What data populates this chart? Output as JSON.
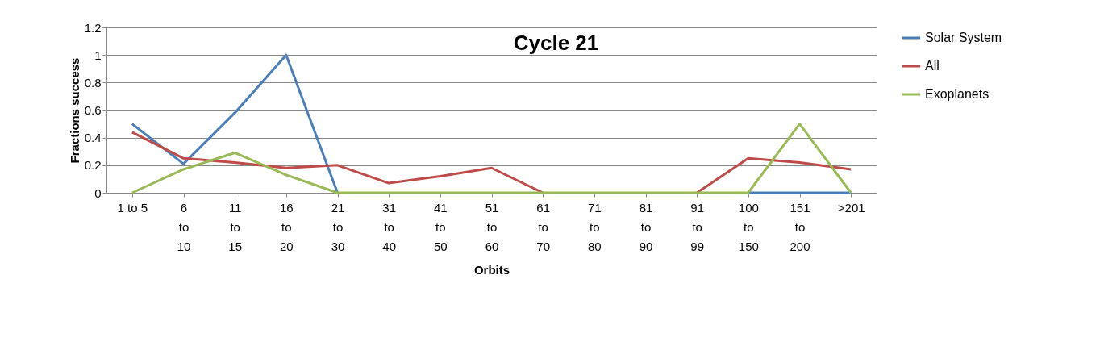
{
  "chart_data": {
    "type": "line",
    "title": "Cycle 21",
    "xlabel": "Orbits",
    "ylabel": "Fractions success",
    "categories": [
      "1 to 5",
      "6 to 10",
      "11 to 15",
      "16 to 20",
      "21 to 30",
      "31 to 40",
      "41 to 50",
      "51 to 60",
      "61 to 70",
      "71 to 80",
      "81 to 90",
      "91 to 99",
      "100 to 150",
      "151 to 200",
      ">201"
    ],
    "series": [
      {
        "name": "Solar System",
        "color": "#4a7ebb",
        "values": [
          0.5,
          0.21,
          0.58,
          1.0,
          0,
          null,
          null,
          null,
          null,
          null,
          null,
          null,
          0,
          0,
          0
        ]
      },
      {
        "name": "All",
        "color": "#be4b48",
        "values": [
          0.44,
          0.25,
          0.22,
          0.18,
          0.2,
          0.07,
          0.12,
          0.18,
          0,
          null,
          null,
          0,
          0.25,
          0.22,
          0.17
        ]
      },
      {
        "name": "Exoplanets",
        "color": "#98b954",
        "values": [
          0,
          0.17,
          0.29,
          0.13,
          0,
          0,
          0,
          0,
          0,
          0,
          0,
          0,
          0,
          0.5,
          0
        ]
      }
    ],
    "ylim": [
      0,
      1.2
    ],
    "yticks": [
      0,
      0.2,
      0.4,
      0.6,
      0.8,
      1,
      1.2
    ],
    "grid": "y",
    "legend": "right",
    "marker": "none",
    "line_style": "solid"
  }
}
